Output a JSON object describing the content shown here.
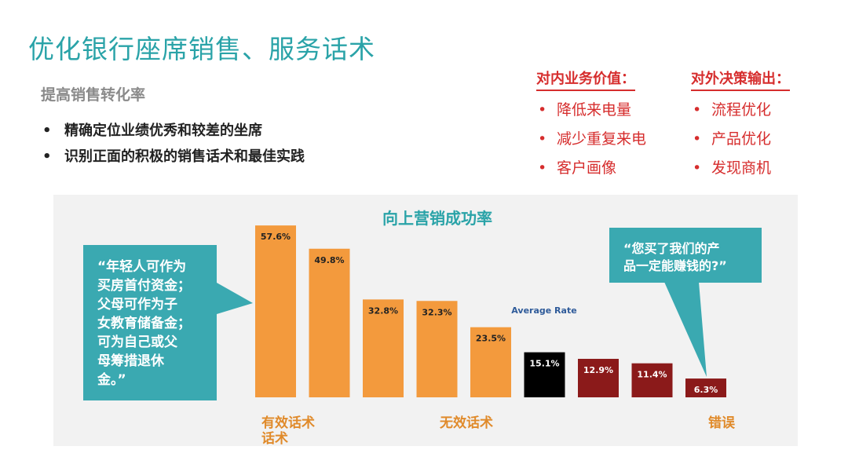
{
  "page": {
    "title": "优化银行座席销售、服务话术",
    "subtitle": "提高销售转化率",
    "bullets": [
      "精确定位业绩优秀和较差的坐席",
      "识别正面的积极的销售话术和最佳实践"
    ]
  },
  "inner_value": {
    "heading": "对内业务价值：",
    "items": [
      "降低来电量",
      "减少重复来电",
      "客户画像"
    ]
  },
  "outer_output": {
    "heading": "对外决策输出：",
    "items": [
      "流程优化",
      "产品优化",
      "发现商机"
    ]
  },
  "callouts": {
    "left": "“年轻人可作为\n买房首付资金；\n父母可作为子\n女教育储备金；\n可为自己或父\n母筹措退休\n金。”",
    "right": "“您买了我们的产\n品一定能赚钱的?”"
  },
  "colors": {
    "accent": "#2aa3a8",
    "callout": "#3aa9b1",
    "orange": "#f39a3d",
    "black": "#000000",
    "dark_red": "#8b1a1a",
    "red_text": "#d62d2d"
  },
  "chart_data": {
    "type": "bar",
    "title": "向上营销成功率",
    "categories": [
      "",
      "",
      "",
      "",
      "",
      "",
      "",
      "",
      ""
    ],
    "values": [
      57.6,
      49.8,
      32.8,
      32.3,
      23.5,
      15.1,
      12.9,
      11.4,
      6.3
    ],
    "value_labels": [
      "57.6%",
      "49.8%",
      "32.8%",
      "32.3%",
      "23.5%",
      "15.1%",
      "12.9%",
      "11.4%",
      "6.3%"
    ],
    "bar_colors": [
      "#f39a3d",
      "#f39a3d",
      "#f39a3d",
      "#f39a3d",
      "#f39a3d",
      "#000000",
      "#8b1a1a",
      "#8b1a1a",
      "#8b1a1a"
    ],
    "average_label": "Average Rate",
    "group_labels": [
      "有效话术\n话术",
      "无效话术",
      "错误"
    ],
    "ylim": [
      0,
      60
    ],
    "grid": false,
    "legend": "none"
  }
}
